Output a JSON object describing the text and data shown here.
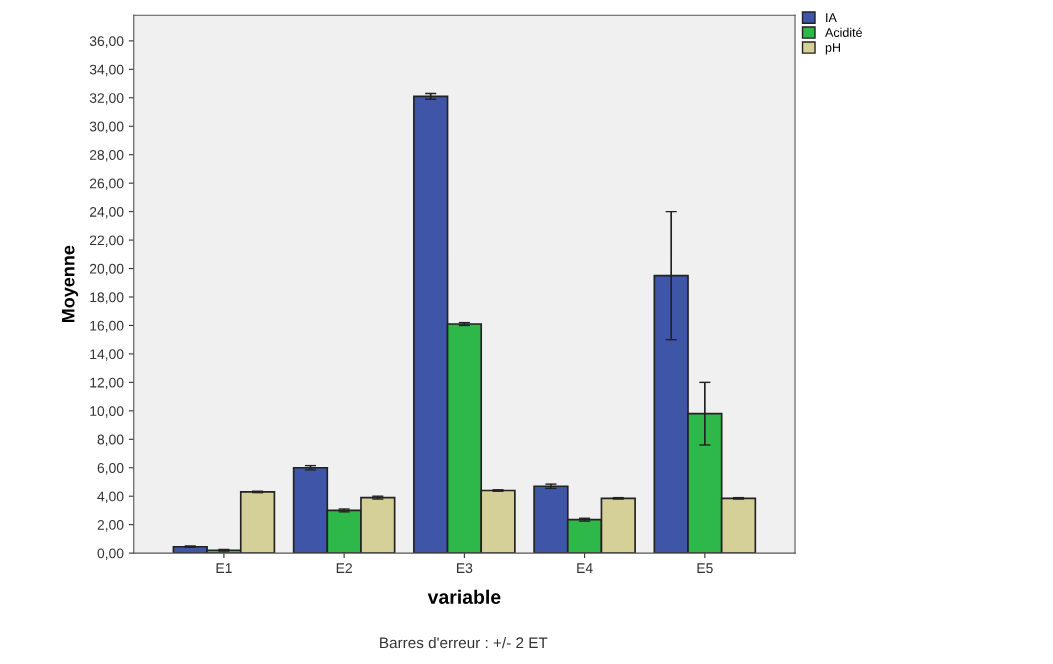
{
  "chart_data": {
    "type": "bar",
    "xlabel": "variable",
    "ylabel": "Moyenne",
    "categories": [
      "E1",
      "E2",
      "E3",
      "E4",
      "E5"
    ],
    "series": [
      {
        "name": "IA",
        "color": "#3f56a8",
        "values": [
          0.45,
          6.0,
          32.1,
          4.7,
          19.5
        ],
        "errors": [
          0.05,
          0.15,
          0.2,
          0.15,
          4.5
        ]
      },
      {
        "name": "Acidité",
        "color": "#2eb84a",
        "values": [
          0.2,
          3.0,
          16.1,
          2.35,
          9.8
        ],
        "errors": [
          0.05,
          0.1,
          0.1,
          0.1,
          2.2
        ]
      },
      {
        "name": "pH",
        "color": "#d5cf98",
        "values": [
          4.3,
          3.9,
          4.4,
          3.85,
          3.85
        ],
        "errors": [
          0.05,
          0.1,
          0.05,
          0.05,
          0.05
        ]
      }
    ],
    "ylim": [
      0,
      37.8
    ],
    "yticks": [
      {
        "value": 0,
        "label": "0,00"
      },
      {
        "value": 2,
        "label": "2,00"
      },
      {
        "value": 4,
        "label": "4,00"
      },
      {
        "value": 6,
        "label": "6,00"
      },
      {
        "value": 8,
        "label": "8,00"
      },
      {
        "value": 10,
        "label": "10,00"
      },
      {
        "value": 12,
        "label": "12,00"
      },
      {
        "value": 14,
        "label": "14,00"
      },
      {
        "value": 16,
        "label": "16,00"
      },
      {
        "value": 18,
        "label": "18,00"
      },
      {
        "value": 20,
        "label": "20,00"
      },
      {
        "value": 22,
        "label": "22,00"
      },
      {
        "value": 24,
        "label": "24,00"
      },
      {
        "value": 26,
        "label": "26,00"
      },
      {
        "value": 28,
        "label": "28,00"
      },
      {
        "value": 30,
        "label": "30,00"
      },
      {
        "value": 32,
        "label": "32,00"
      },
      {
        "value": 34,
        "label": "34,00"
      },
      {
        "value": 36,
        "label": "36,00"
      }
    ],
    "grid": false,
    "legend": "top right",
    "annotations": [
      "Barres d'erreur : +/- 2 ET"
    ]
  }
}
